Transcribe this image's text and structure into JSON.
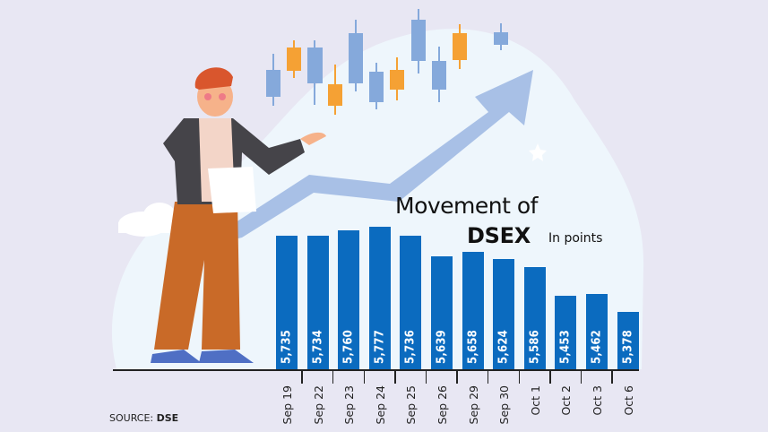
{
  "title": {
    "line1": "Movement of",
    "line2": "DSEX",
    "unit": "In points"
  },
  "source": {
    "label": "SOURCE:",
    "value": "DSE"
  },
  "illustration": {
    "subject": "man-presenting-rising-arrow",
    "decor": [
      "candlestick-icons",
      "cloud-shape",
      "star-icon"
    ]
  },
  "colors": {
    "bar": "#0b6bbf",
    "background": "#e8e7f3",
    "candle_blue": "#85a9db",
    "candle_orange": "#f5a134",
    "arrow": "#a8c0e6",
    "blob": "#eef6fc"
  },
  "chart_data": {
    "type": "bar",
    "title": "Movement of DSEX",
    "subtitle": "In points",
    "xlabel": "",
    "ylabel": "In points",
    "categories": [
      "Sep 19",
      "Sep 22",
      "Sep 23",
      "Sep 24",
      "Sep 25",
      "Sep 26",
      "Sep 29",
      "Sep 30",
      "Oct 1",
      "Oct 2",
      "Oct 3",
      "Oct 6"
    ],
    "values": [
      5735,
      5734,
      5760,
      5777,
      5736,
      5639,
      5658,
      5624,
      5586,
      5453,
      5462,
      5378
    ],
    "value_labels": [
      "5,735",
      "5,734",
      "5,760",
      "5,777",
      "5,736",
      "5,639",
      "5,658",
      "5,624",
      "5,586",
      "5,453",
      "5,462",
      "5,378"
    ],
    "grid": false,
    "legend": "none",
    "source": "DSE"
  }
}
